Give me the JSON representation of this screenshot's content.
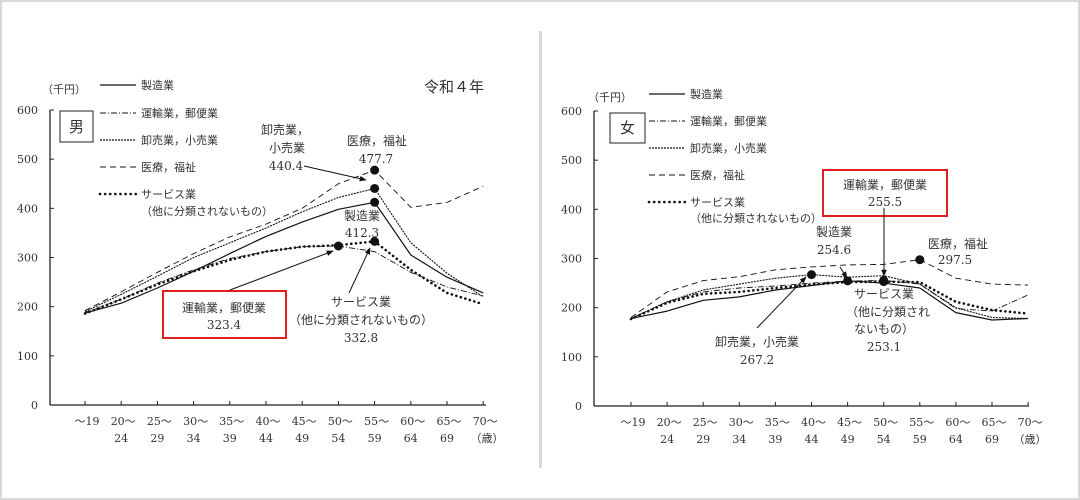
{
  "chart_data": [
    {
      "type": "line",
      "title": "令和４年",
      "panel_label": "男",
      "ylabel": "（千円）",
      "xlabel_unit": "（歳）",
      "ylim": [
        0,
        600
      ],
      "yticks": [
        0,
        100,
        200,
        300,
        400,
        500,
        600
      ],
      "categories": [
        [
          "～19",
          ""
        ],
        [
          "20～",
          "24"
        ],
        [
          "25～",
          "29"
        ],
        [
          "30～",
          "34"
        ],
        [
          "35～",
          "39"
        ],
        [
          "40～",
          "44"
        ],
        [
          "45～",
          "49"
        ],
        [
          "50～",
          "54"
        ],
        [
          "55～",
          "59"
        ],
        [
          "60～",
          "64"
        ],
        [
          "65～",
          "69"
        ],
        [
          "70～",
          ""
        ]
      ],
      "series": [
        {
          "name": "製造業",
          "style": "solid",
          "values": [
            187,
            207,
            238,
            272,
            308,
            343,
            372,
            398,
            412.3,
            305,
            260,
            228
          ]
        },
        {
          "name": "運輸業，郵便業",
          "style": "dashdot",
          "values": [
            188,
            215,
            248,
            275,
            298,
            312,
            322,
            323.4,
            312,
            270,
            240,
            222
          ]
        },
        {
          "name": "卸売業，小売業",
          "style": "dotted",
          "values": [
            190,
            225,
            262,
            300,
            330,
            360,
            393,
            422,
            440.4,
            330,
            268,
            220
          ]
        },
        {
          "name": "医療，福祉",
          "style": "dashed",
          "values": [
            192,
            230,
            270,
            308,
            342,
            368,
            400,
            450,
            477.7,
            402,
            412,
            445
          ]
        },
        {
          "name": "サービス業\n（他に分類されないもの）",
          "style": "bolddot",
          "values": [
            186,
            215,
            245,
            272,
            295,
            312,
            322,
            325,
            332.8,
            275,
            228,
            205
          ]
        }
      ],
      "legend": [
        {
          "label": "製造業"
        },
        {
          "label": "運輸業，郵便業"
        },
        {
          "label": "卸売業，小売業"
        },
        {
          "label": "医療，福祉"
        },
        {
          "label": "サービス業",
          "label2": "（他に分類されないもの）"
        }
      ],
      "annotations": [
        {
          "lines": [
            "卸売業，",
            "小売業",
            "440.4"
          ]
        },
        {
          "lines": [
            "医療，福祉",
            "477.7"
          ]
        },
        {
          "lines": [
            "製造業",
            "412.3"
          ]
        },
        {
          "lines": [
            "運輸業，郵便業",
            "323.4"
          ],
          "highlight": true
        },
        {
          "lines": [
            "サービス業",
            "（他に分類されないもの）",
            "332.8"
          ]
        }
      ]
    },
    {
      "type": "line",
      "panel_label": "女",
      "ylabel": "（千円）",
      "xlabel_unit": "（歳）",
      "ylim": [
        0,
        600
      ],
      "yticks": [
        0,
        100,
        200,
        300,
        400,
        500,
        600
      ],
      "categories": [
        [
          "～19",
          ""
        ],
        [
          "20～",
          "24"
        ],
        [
          "25～",
          "29"
        ],
        [
          "30～",
          "34"
        ],
        [
          "35～",
          "39"
        ],
        [
          "40～",
          "44"
        ],
        [
          "45～",
          "49"
        ],
        [
          "50～",
          "54"
        ],
        [
          "55～",
          "59"
        ],
        [
          "60～",
          "64"
        ],
        [
          "65～",
          "69"
        ],
        [
          "70～",
          ""
        ]
      ],
      "series": [
        {
          "name": "製造業",
          "style": "solid",
          "values": [
            178,
            193,
            215,
            222,
            236,
            245,
            254.6,
            250,
            240,
            190,
            175,
            178
          ]
        },
        {
          "name": "運輸業，郵便業",
          "style": "dashdot",
          "values": [
            178,
            212,
            232,
            240,
            244,
            250,
            254,
            255.5,
            248,
            198,
            193,
            226
          ]
        },
        {
          "name": "卸売業，小売業",
          "style": "dotted",
          "values": [
            178,
            212,
            236,
            248,
            260,
            267.2,
            262,
            265,
            248,
            200,
            180,
            178
          ]
        },
        {
          "name": "医療，福祉",
          "style": "dashed",
          "values": [
            180,
            232,
            255,
            263,
            277,
            283,
            287,
            288,
            297.5,
            260,
            248,
            246
          ]
        },
        {
          "name": "サービス業\n（他に分類されないもの）",
          "style": "bolddot",
          "values": [
            177,
            210,
            228,
            232,
            240,
            247,
            252,
            253.1,
            252,
            212,
            195,
            188
          ]
        }
      ],
      "legend": [
        {
          "label": "製造業"
        },
        {
          "label": "運輸業，郵便業"
        },
        {
          "label": "卸売業，小売業"
        },
        {
          "label": "医療，福祉"
        },
        {
          "label": "サービス業",
          "label2": "（他に分類されないもの）"
        }
      ],
      "annotations": [
        {
          "lines": [
            "運輸業，郵便業",
            "255.5"
          ],
          "highlight": true
        },
        {
          "lines": [
            "製造業",
            "254.6"
          ]
        },
        {
          "lines": [
            "医療，福祉",
            "297.5"
          ]
        },
        {
          "lines": [
            "サービス業",
            "（他に分類され",
            "ないもの）",
            "253.1"
          ]
        },
        {
          "lines": [
            "卸売業，小売業",
            "267.2"
          ]
        }
      ]
    }
  ],
  "colors": {
    "highlight": "#e02020",
    "line": "#111111",
    "frame": "#d9d9d9"
  }
}
